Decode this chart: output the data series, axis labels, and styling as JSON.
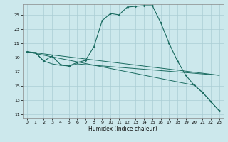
{
  "xlabel": "Humidex (Indice chaleur)",
  "bg_color": "#cce8ec",
  "grid_color": "#aacdd4",
  "line_color": "#1a6b60",
  "xlim": [
    -0.5,
    23.5
  ],
  "ylim": [
    10.5,
    26.5
  ],
  "xticks": [
    0,
    1,
    2,
    3,
    4,
    5,
    6,
    7,
    8,
    9,
    10,
    11,
    12,
    13,
    14,
    15,
    16,
    17,
    18,
    19,
    20,
    21,
    22,
    23
  ],
  "yticks": [
    11,
    13,
    15,
    17,
    19,
    21,
    23,
    25
  ],
  "series1": [
    [
      0,
      19.8
    ],
    [
      1,
      19.7
    ],
    [
      2,
      18.5
    ],
    [
      3,
      19.2
    ],
    [
      4,
      18.0
    ],
    [
      5,
      17.8
    ],
    [
      6,
      18.3
    ],
    [
      7,
      18.6
    ],
    [
      8,
      20.5
    ],
    [
      9,
      24.2
    ],
    [
      10,
      25.2
    ],
    [
      11,
      25.0
    ],
    [
      12,
      26.1
    ],
    [
      13,
      26.2
    ],
    [
      14,
      26.3
    ],
    [
      15,
      26.3
    ],
    [
      16,
      23.9
    ],
    [
      17,
      21.0
    ],
    [
      18,
      18.5
    ],
    [
      19,
      16.5
    ],
    [
      20,
      15.1
    ],
    [
      21,
      14.1
    ],
    [
      22,
      12.8
    ],
    [
      23,
      11.5
    ]
  ],
  "series2": [
    [
      0,
      19.8
    ],
    [
      1,
      19.7
    ],
    [
      2,
      18.5
    ],
    [
      3,
      18.1
    ],
    [
      4,
      17.9
    ],
    [
      5,
      17.8
    ],
    [
      6,
      18.1
    ],
    [
      7,
      18.0
    ],
    [
      23,
      16.5
    ]
  ],
  "series3": [
    [
      0,
      19.8
    ],
    [
      23,
      16.5
    ]
  ],
  "series4": [
    [
      0,
      19.8
    ],
    [
      20,
      15.1
    ],
    [
      21,
      14.1
    ],
    [
      22,
      12.8
    ],
    [
      23,
      11.5
    ]
  ]
}
